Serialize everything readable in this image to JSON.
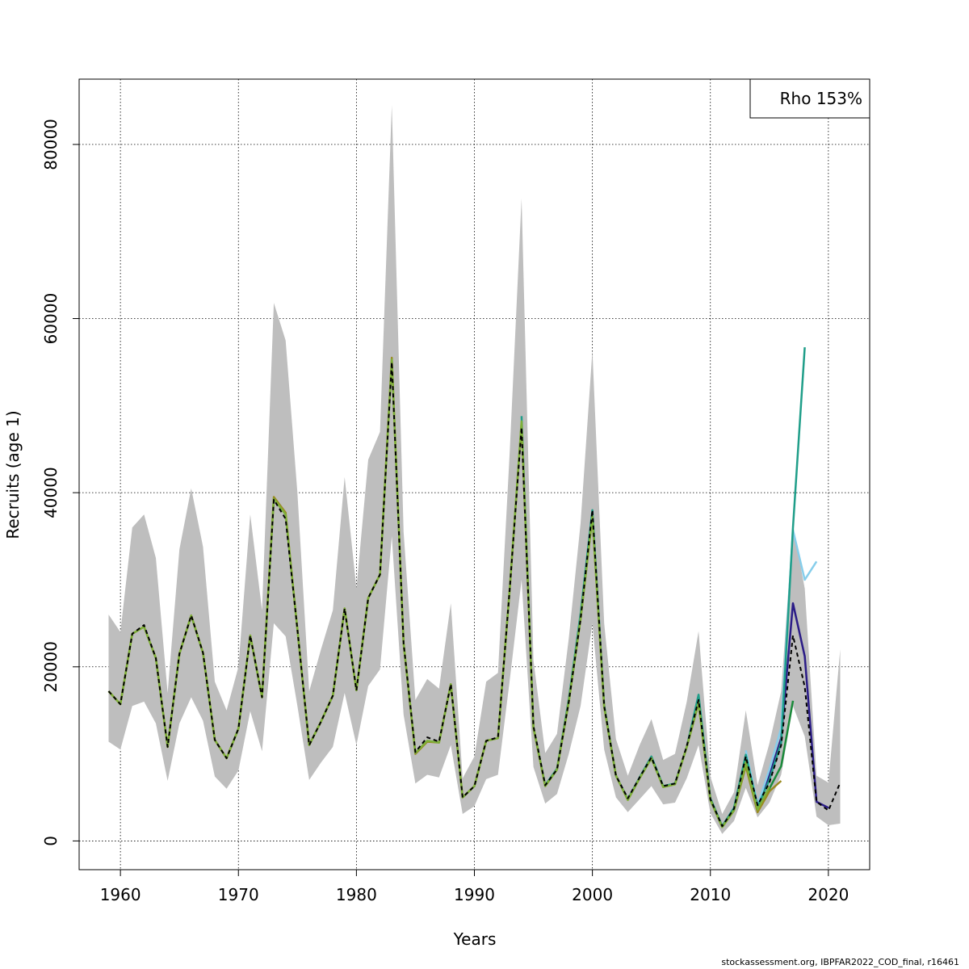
{
  "chart_data": {
    "type": "line",
    "xlabel": "Years",
    "ylabel": "Recruits (age 1)",
    "xlim": [
      1956.5,
      2023.5
    ],
    "ylim": [
      -3300,
      87500
    ],
    "xticks": [
      1960,
      1970,
      1980,
      1990,
      2000,
      2010,
      2020
    ],
    "yticks": [
      0,
      20000,
      40000,
      60000,
      80000
    ],
    "grid": true,
    "legend_text": "Rho 153%",
    "legend_position": "top-right",
    "ci_band": {
      "x": [
        1959,
        1960,
        1961,
        1962,
        1963,
        1964,
        1965,
        1966,
        1967,
        1968,
        1969,
        1970,
        1971,
        1972,
        1973,
        1974,
        1975,
        1976,
        1977,
        1978,
        1979,
        1980,
        1981,
        1982,
        1983,
        1984,
        1985,
        1986,
        1987,
        1988,
        1989,
        1990,
        1991,
        1992,
        1993,
        1994,
        1995,
        1996,
        1997,
        1998,
        1999,
        2000,
        2001,
        2002,
        2003,
        2004,
        2005,
        2006,
        2007,
        2008,
        2009,
        2010,
        2011,
        2012,
        2013,
        2014,
        2015,
        2016,
        2017,
        2018,
        2019,
        2020,
        2021
      ],
      "lower": [
        11400,
        10500,
        15500,
        16000,
        13500,
        6900,
        13500,
        16500,
        13800,
        7400,
        6000,
        8100,
        14900,
        10300,
        25000,
        23500,
        15500,
        7000,
        9000,
        10800,
        17000,
        11000,
        17800,
        19700,
        35000,
        14500,
        6600,
        7600,
        7300,
        11000,
        3100,
        4000,
        7100,
        7600,
        18500,
        30000,
        8500,
        4300,
        5400,
        10000,
        15500,
        25000,
        10500,
        5000,
        3300,
        4800,
        6300,
        4200,
        4400,
        7200,
        11000,
        3200,
        800,
        2300,
        6100,
        2700,
        4400,
        7600,
        15500,
        12000,
        2800,
        1800,
        2000
      ],
      "upper": [
        26000,
        24000,
        36000,
        37500,
        32500,
        17000,
        33500,
        40500,
        33800,
        18300,
        15000,
        20000,
        37500,
        26500,
        61800,
        57500,
        40000,
        17200,
        22000,
        26500,
        41800,
        29000,
        43800,
        47000,
        84500,
        35500,
        16200,
        18600,
        17500,
        27300,
        7200,
        9700,
        18300,
        19300,
        44800,
        73800,
        20800,
        10100,
        12300,
        23300,
        36500,
        56300,
        25000,
        11700,
        7500,
        11000,
        14000,
        9300,
        10000,
        16000,
        24100,
        7400,
        3100,
        5600,
        15000,
        6400,
        11200,
        17200,
        36300,
        29000,
        7500,
        6700,
        22000
      ]
    },
    "series": [
      {
        "color": "#000000",
        "dashed": true,
        "x": [
          1959,
          1960,
          1961,
          1962,
          1963,
          1964,
          1965,
          1966,
          1967,
          1968,
          1969,
          1970,
          1971,
          1972,
          1973,
          1974,
          1975,
          1976,
          1977,
          1978,
          1979,
          1980,
          1981,
          1982,
          1983,
          1984,
          1985,
          1986,
          1987,
          1988,
          1989,
          1990,
          1991,
          1992,
          1993,
          1994,
          1995,
          1996,
          1997,
          1998,
          1999,
          2000,
          2001,
          2002,
          2003,
          2004,
          2005,
          2006,
          2007,
          2008,
          2009,
          2010,
          2011,
          2012,
          2013,
          2014,
          2015,
          2016,
          2017,
          2018,
          2019,
          2020,
          2021
        ],
        "values": [
          17200,
          15700,
          23800,
          24800,
          21000,
          10800,
          21500,
          25900,
          21600,
          11600,
          9500,
          12900,
          23600,
          16500,
          39200,
          37000,
          24300,
          11000,
          13700,
          16700,
          26700,
          17300,
          27900,
          30600,
          55000,
          22700,
          10200,
          11900,
          11400,
          18000,
          5000,
          6300,
          11500,
          11900,
          29000,
          47500,
          13200,
          6400,
          8200,
          16000,
          25500,
          38000,
          15500,
          7500,
          4900,
          7300,
          9600,
          6300,
          6600,
          10900,
          16200,
          4800,
          1700,
          3700,
          9700,
          4100,
          6700,
          11000,
          23600,
          17700,
          4500,
          3500,
          6700
        ]
      },
      {
        "color": "#2b1c87",
        "dashed": false,
        "x": [
          2013,
          2014,
          2015,
          2016,
          2017,
          2018,
          2019,
          2020
        ],
        "values": [
          9800,
          4200,
          7500,
          11800,
          27300,
          21200,
          4500,
          3800
        ]
      },
      {
        "color": "#87ceeb",
        "dashed": false,
        "x": [
          2013,
          2014,
          2015,
          2016,
          2017,
          2018,
          2019
        ],
        "values": [
          10400,
          4100,
          8200,
          13000,
          35700,
          30000,
          32100
        ]
      },
      {
        "color": "#1f9e89",
        "dashed": false,
        "x": [
          1994,
          1995,
          1996,
          1997,
          1998,
          1999,
          2000,
          2001,
          2002,
          2003,
          2004,
          2005,
          2006,
          2007,
          2008,
          2009,
          2010,
          2011,
          2012,
          2013,
          2014,
          2015,
          2016,
          2017,
          2018
        ],
        "values": [
          48800,
          13000,
          6400,
          8300,
          16300,
          26100,
          38000,
          15600,
          7500,
          4800,
          7300,
          9700,
          6300,
          6600,
          10800,
          16800,
          4900,
          1700,
          3800,
          9900,
          3900,
          7000,
          11300,
          36000,
          56700
        ]
      },
      {
        "color": "#1a8a3a",
        "dashed": false,
        "x": [
          2009,
          2010,
          2011,
          2012,
          2013,
          2014,
          2015,
          2016,
          2017
        ],
        "values": [
          16000,
          4800,
          1600,
          3600,
          9100,
          3700,
          6000,
          8600,
          16100
        ]
      },
      {
        "color": "#9a8a20",
        "dashed": false,
        "x": [
          1959,
          1960,
          1961,
          1962,
          1963,
          1964,
          1965,
          1966,
          1967,
          1968,
          1969,
          1970,
          1971,
          1972,
          1973,
          1974,
          1975,
          1976,
          1977,
          1978,
          1979,
          1980,
          1981,
          1982,
          1983,
          1984,
          1985,
          1986,
          1987,
          1988,
          1989,
          1990,
          1991,
          1992,
          1993,
          1994,
          1995,
          1996,
          1997,
          1998,
          1999,
          2000,
          2001,
          2002,
          2003,
          2004,
          2005,
          2006,
          2007,
          2008,
          2009,
          2010,
          2011,
          2012,
          2013,
          2014,
          2015,
          2016
        ],
        "values": [
          17200,
          15700,
          23800,
          24600,
          21000,
          10800,
          21500,
          25900,
          21600,
          11600,
          9500,
          12900,
          23600,
          16500,
          39500,
          37700,
          24300,
          11000,
          13700,
          16700,
          26700,
          17300,
          27900,
          30600,
          55500,
          22700,
          10000,
          11400,
          11300,
          18000,
          5000,
          6300,
          11500,
          11800,
          29000,
          48000,
          13000,
          6300,
          8200,
          16000,
          25500,
          37200,
          15400,
          7500,
          4700,
          7200,
          9500,
          6200,
          6500,
          10800,
          15800,
          4700,
          1600,
          3500,
          8600,
          3300,
          5700,
          6900
        ]
      },
      {
        "color": "#7db038",
        "dashed": false,
        "x": [
          1959,
          1960,
          1961,
          1962,
          1963,
          1964,
          1965,
          1966,
          1967,
          1968,
          1969,
          1970,
          1971,
          1972,
          1973,
          1974,
          1975,
          1976,
          1977,
          1978,
          1979,
          1980,
          1981,
          1982,
          1983,
          1984,
          1985,
          1986,
          1987,
          1988,
          1989,
          1990,
          1991,
          1992,
          1993,
          1994,
          1995,
          1996,
          1997,
          1998,
          1999,
          2000,
          2001,
          2002,
          2003,
          2004,
          2005,
          2006,
          2007,
          2008,
          2009,
          2010,
          2011,
          2012,
          2013,
          2014,
          2015
        ],
        "values": [
          17200,
          15700,
          23800,
          24600,
          21000,
          10800,
          21500,
          25900,
          21600,
          11600,
          9500,
          12900,
          23600,
          16500,
          39300,
          37500,
          24300,
          11000,
          13700,
          16700,
          26700,
          17300,
          27900,
          30600,
          55300,
          22700,
          10100,
          11500,
          11300,
          18000,
          5000,
          6300,
          11500,
          11800,
          29000,
          48200,
          13100,
          6300,
          8200,
          16000,
          25500,
          37300,
          15400,
          7500,
          4700,
          7200,
          9500,
          6200,
          6500,
          10800,
          15900,
          4700,
          1600,
          3500,
          9000,
          3600,
          6200
        ]
      }
    ]
  },
  "footer_text": "stockassessment.org, IBPFAR2022_COD_final, r16461"
}
